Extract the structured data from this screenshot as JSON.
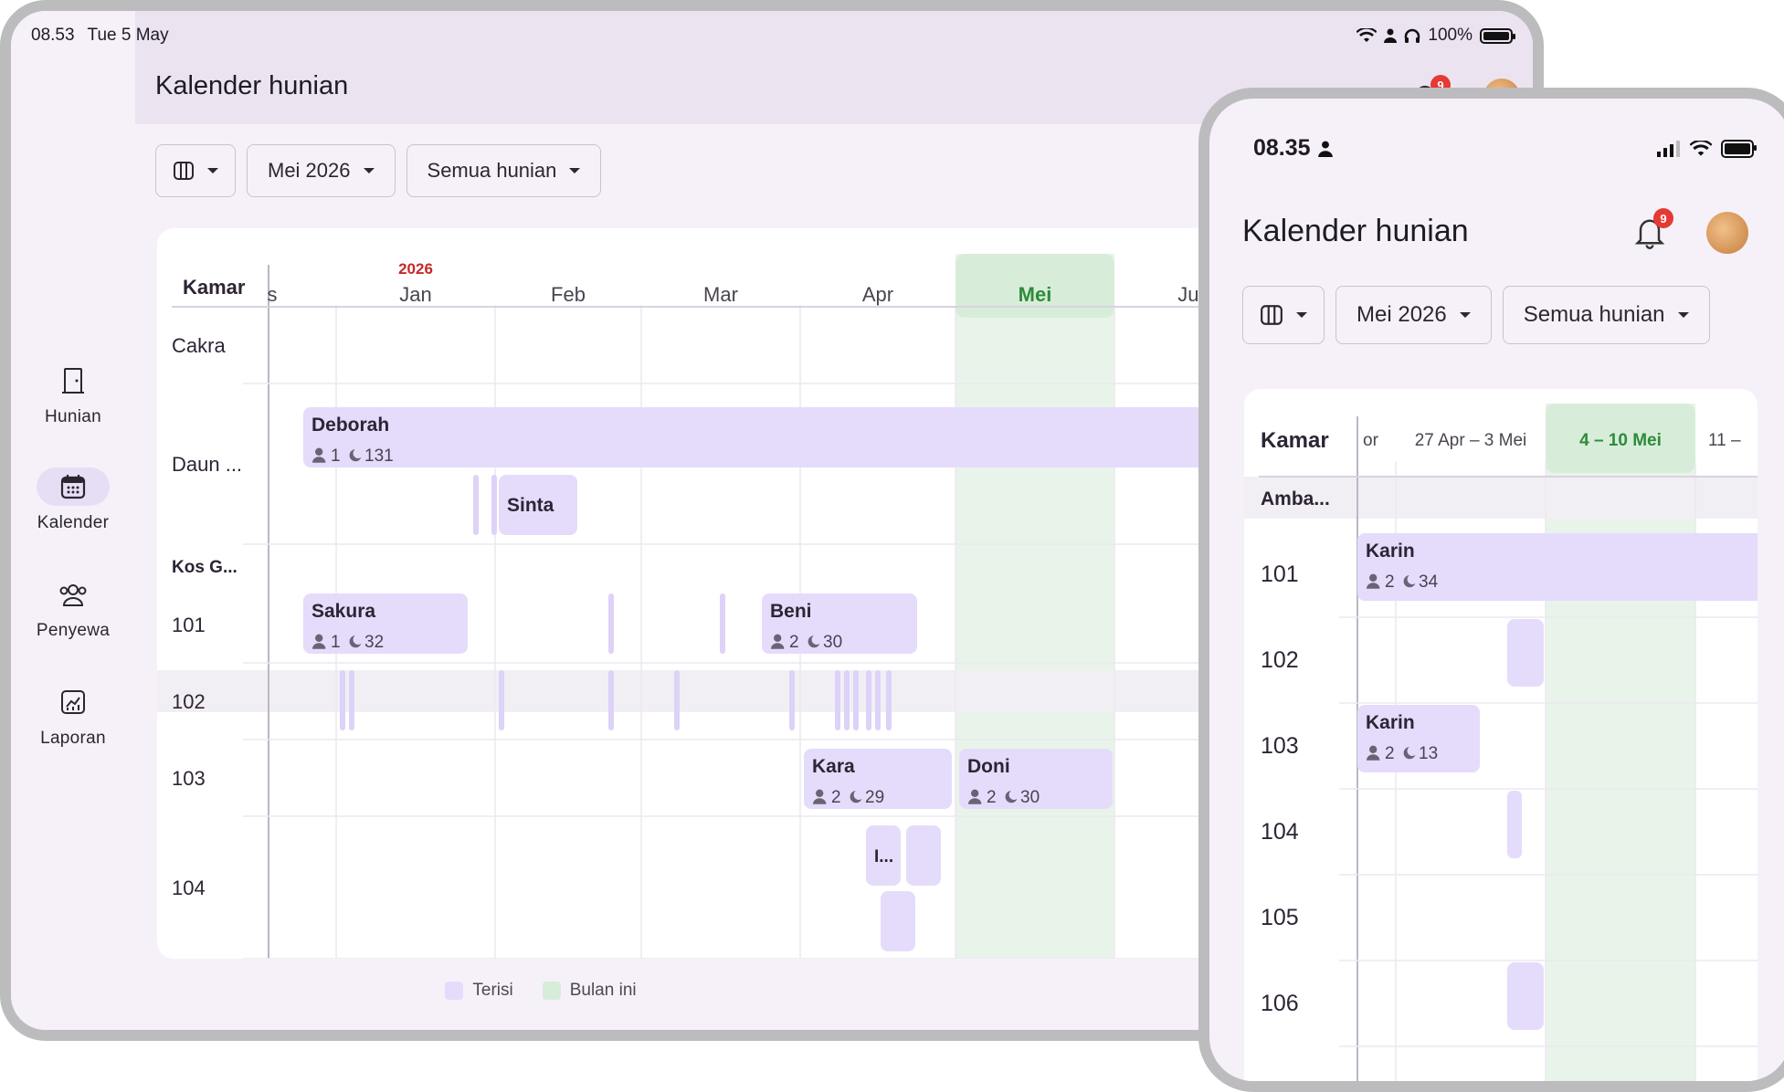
{
  "ipad": {
    "status": {
      "time": "08.53",
      "date": "Tue 5 May",
      "battery": "100%"
    },
    "title": "Kalender hunian",
    "notif_count": "9",
    "nav": [
      {
        "label": "Hunian",
        "icon": "door-icon",
        "active": false
      },
      {
        "label": "Kalender",
        "icon": "calendar-icon",
        "active": true
      },
      {
        "label": "Penyewa",
        "icon": "people-icon",
        "active": false
      },
      {
        "label": "Laporan",
        "icon": "chart-icon",
        "active": false
      }
    ],
    "toolbar": {
      "month": "Mei 2026",
      "filter": "Semua hunian"
    },
    "calendar": {
      "room_header": "Kamar",
      "year_label": "2026",
      "months": [
        {
          "label": "s"
        },
        {
          "label": "Jan"
        },
        {
          "label": "Feb"
        },
        {
          "label": "Mar"
        },
        {
          "label": "Apr"
        },
        {
          "label": "Mei",
          "current": true
        },
        {
          "label": "Jun"
        }
      ],
      "rows": [
        {
          "label": "Cakra",
          "type": "room"
        },
        {
          "label": "Daun ...",
          "type": "room"
        },
        {
          "label": "Kos G...",
          "type": "group"
        },
        {
          "label": "101",
          "type": "room"
        },
        {
          "label": "102",
          "type": "room"
        },
        {
          "label": "103",
          "type": "room"
        },
        {
          "label": "104",
          "type": "room"
        }
      ],
      "bookings": [
        {
          "name": "Deborah",
          "guests": "1",
          "nights": "131"
        },
        {
          "name": "Sinta"
        },
        {
          "name": "Sakura",
          "guests": "1",
          "nights": "32"
        },
        {
          "name": "Beni",
          "guests": "2",
          "nights": "30"
        },
        {
          "name": "Kara",
          "guests": "2",
          "nights": "29"
        },
        {
          "name": "Doni",
          "guests": "2",
          "nights": "30"
        },
        {
          "name": "I..."
        }
      ]
    },
    "legend": {
      "occupied": "Terisi",
      "this_month": "Bulan ini"
    }
  },
  "phone": {
    "status": {
      "time": "08.35"
    },
    "title": "Kalender hunian",
    "notif_count": "9",
    "toolbar": {
      "month": "Mei 2026",
      "filter": "Semua hunian"
    },
    "calendar": {
      "room_header": "Kamar",
      "weeks": [
        {
          "label": "or"
        },
        {
          "label": "27 Apr – 3 Mei"
        },
        {
          "label": "4 – 10 Mei",
          "current": true
        },
        {
          "label": "11 –"
        }
      ],
      "rows": [
        {
          "label": "Amba...",
          "type": "group"
        },
        {
          "label": "101",
          "type": "room"
        },
        {
          "label": "102",
          "type": "room"
        },
        {
          "label": "103",
          "type": "room"
        },
        {
          "label": "104",
          "type": "room"
        },
        {
          "label": "105",
          "type": "room"
        },
        {
          "label": "106",
          "type": "room"
        }
      ],
      "bookings": [
        {
          "name": "Karin",
          "guests": "2",
          "nights": "34"
        },
        {
          "name": "Karin",
          "guests": "2",
          "nights": "13"
        }
      ]
    }
  },
  "colors": {
    "booking": "#e5dcfb",
    "booking_thin": "#ddd2f8",
    "current_month": "#e8f4e9",
    "current_header": "#d7edd9",
    "current_text": "#2e8b3a",
    "year_text": "#c62828",
    "group_row": "#f2eff4"
  }
}
